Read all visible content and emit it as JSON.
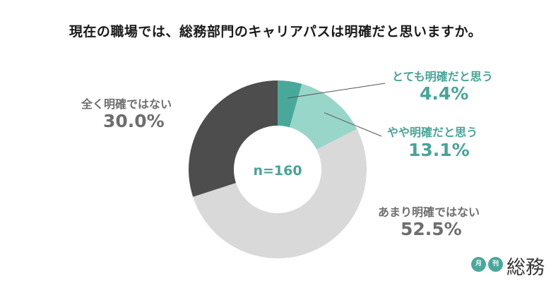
{
  "title": "現在の職場では、総務部門のキャリアパスは明確だと思いますか。",
  "center_label": "n=160",
  "colors": {
    "very_clear": "#4aa89b",
    "somewhat_clear": "#98d6c9",
    "not_very_clear": "#d9d9d9",
    "not_clear_at_all": "#4d4d4d",
    "teal_text": "#47a497",
    "gray_text": "#6e6e6e"
  },
  "chart_data": {
    "type": "pie",
    "donut": true,
    "n_label": "n=160",
    "title": "現在の職場では、総務部門のキャリアパスは明確だと思いますか。",
    "categories": [
      "とても明確だと思う",
      "やや明確だと思う",
      "あまり明確ではない",
      "全く明確ではない"
    ],
    "values": [
      4.4,
      13.1,
      52.5,
      30.0
    ],
    "labels": [
      "4.4%",
      "13.1%",
      "52.5%",
      "30.0%"
    ]
  },
  "logo": {
    "dot1": "月",
    "dot2": "刊",
    "main": "総務"
  }
}
